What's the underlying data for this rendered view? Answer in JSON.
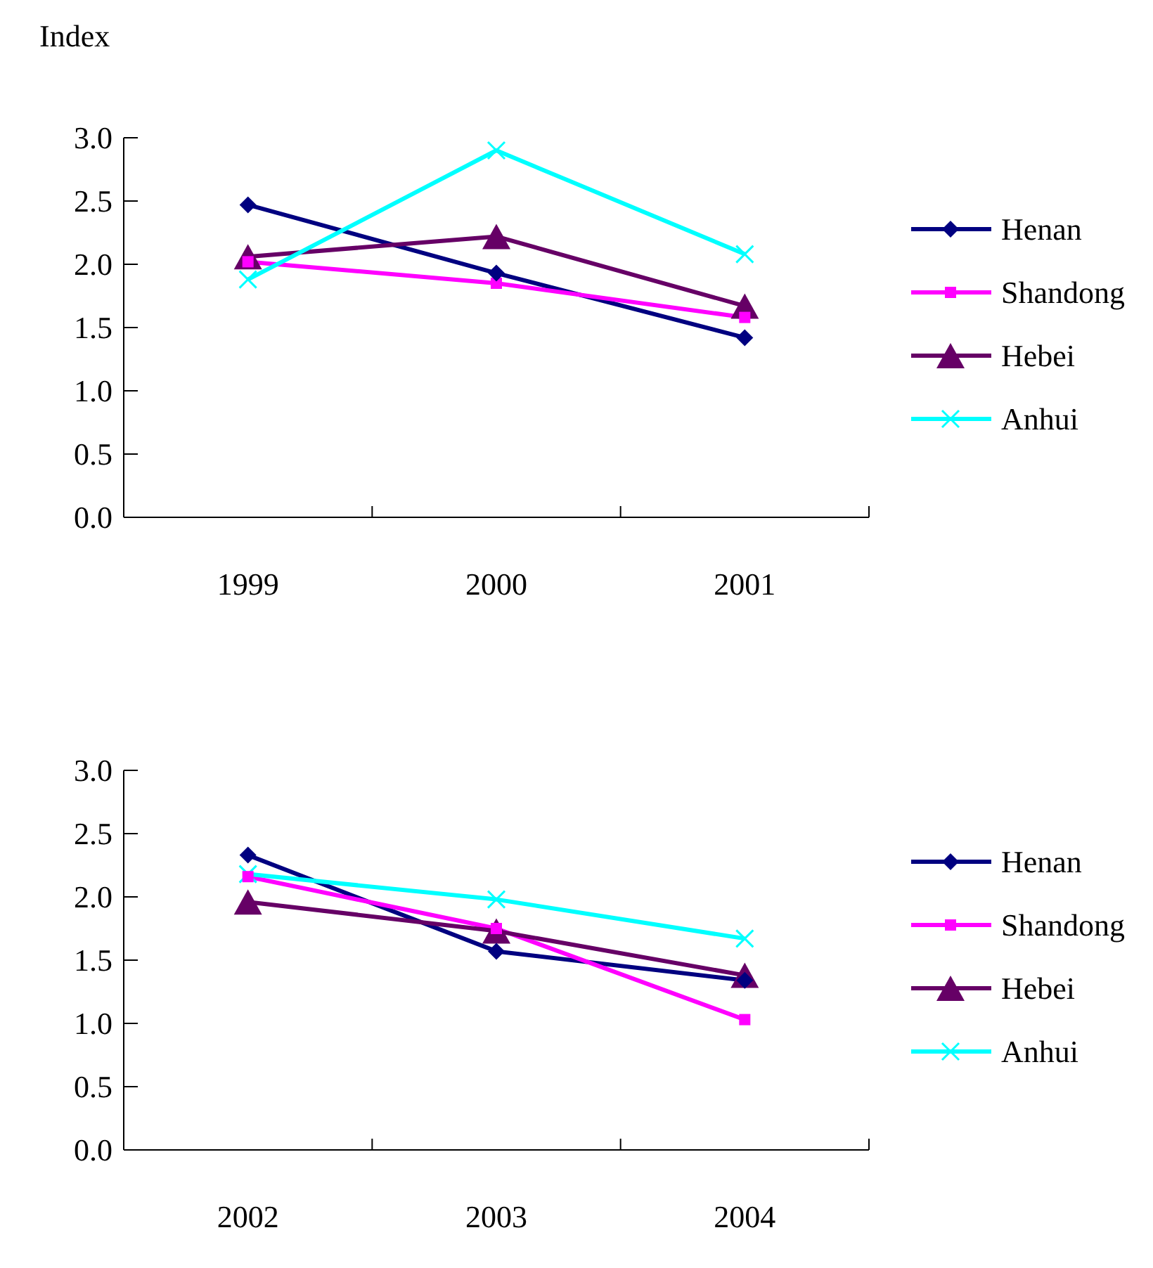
{
  "chart_data": [
    {
      "type": "line",
      "ylabel": "Index",
      "categories": [
        "1999",
        "2000",
        "2001"
      ],
      "ylim": [
        0,
        3
      ],
      "yticks": [
        {
          "value": 0,
          "label": "0.0"
        },
        {
          "value": 0.5,
          "label": "0.5"
        },
        {
          "value": 1,
          "label": "1.0"
        },
        {
          "value": 1.5,
          "label": "1.5"
        },
        {
          "value": 2,
          "label": "2.0"
        },
        {
          "value": 2.5,
          "label": "2.5"
        },
        {
          "value": 3,
          "label": "3.0"
        }
      ],
      "grid": false,
      "legend": "right",
      "series": [
        {
          "name": "Henan",
          "color": "#000080",
          "marker": "diamond",
          "values": [
            2.47,
            1.93,
            1.42
          ]
        },
        {
          "name": "Shandong",
          "color": "#ff00ff",
          "marker": "square",
          "values": [
            2.02,
            1.85,
            1.58
          ]
        },
        {
          "name": "Hebei",
          "color": "#660066",
          "marker": "triangle",
          "values": [
            2.06,
            2.22,
            1.67
          ]
        },
        {
          "name": "Anhui",
          "color": "#00ffff",
          "marker": "cross",
          "values": [
            1.88,
            2.9,
            2.08
          ]
        }
      ]
    },
    {
      "type": "line",
      "categories": [
        "2002",
        "2003",
        "2004"
      ],
      "ylim": [
        0,
        3
      ],
      "yticks": [
        {
          "value": 0,
          "label": "0.0"
        },
        {
          "value": 0.5,
          "label": "0.5"
        },
        {
          "value": 1,
          "label": "1.0"
        },
        {
          "value": 1.5,
          "label": "1.5"
        },
        {
          "value": 2,
          "label": "2.0"
        },
        {
          "value": 2.5,
          "label": "2.5"
        },
        {
          "value": 3,
          "label": "3.0"
        }
      ],
      "grid": false,
      "legend": "right",
      "series": [
        {
          "name": "Henan",
          "color": "#000080",
          "marker": "diamond",
          "values": [
            2.33,
            1.57,
            1.34
          ]
        },
        {
          "name": "Shandong",
          "color": "#ff00ff",
          "marker": "square",
          "values": [
            2.16,
            1.75,
            1.03
          ]
        },
        {
          "name": "Hebei",
          "color": "#660066",
          "marker": "triangle",
          "values": [
            1.96,
            1.73,
            1.38
          ]
        },
        {
          "name": "Anhui",
          "color": "#00ffff",
          "marker": "cross",
          "values": [
            2.18,
            1.98,
            1.67
          ]
        }
      ]
    }
  ]
}
